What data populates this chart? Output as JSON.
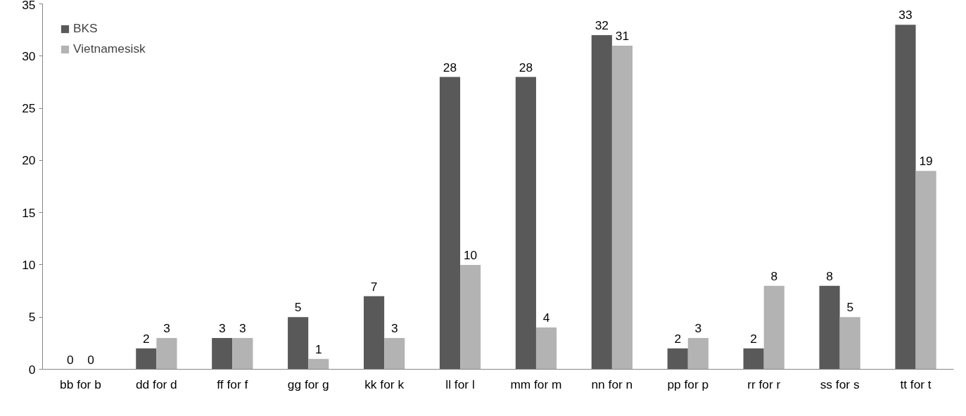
{
  "chart_data": {
    "type": "bar",
    "categories": [
      "bb for b",
      "dd for d",
      "ff for f",
      "gg for g",
      "kk for k",
      "ll for l",
      "mm for m",
      "nn for n",
      "pp for p",
      "rr for r",
      "ss for s",
      "tt for t"
    ],
    "series": [
      {
        "name": "BKS",
        "color": "#595959",
        "values": [
          0,
          2,
          3,
          5,
          7,
          28,
          28,
          32,
          2,
          2,
          8,
          33
        ]
      },
      {
        "name": "Vietnamesisk",
        "color": "#b3b3b3",
        "values": [
          0,
          3,
          3,
          1,
          3,
          10,
          4,
          31,
          3,
          8,
          5,
          19
        ]
      }
    ],
    "ylim": [
      0,
      35
    ],
    "yticks": [
      0,
      5,
      10,
      15,
      20,
      25,
      30,
      35
    ],
    "grid": false,
    "legend": "top left",
    "data_labels": true
  }
}
